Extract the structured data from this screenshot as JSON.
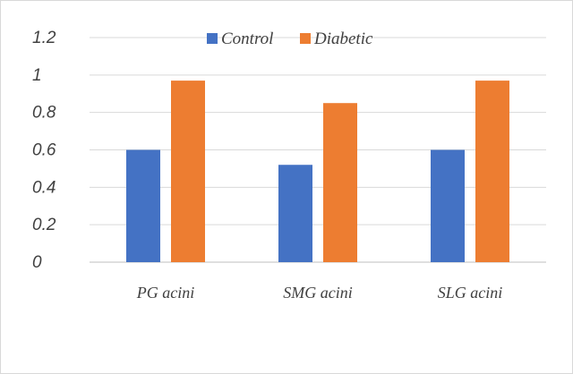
{
  "chart_data": {
    "type": "bar",
    "categories": [
      "PG acini",
      "SMG acini",
      "SLG acini"
    ],
    "series": [
      {
        "name": "Control",
        "values": [
          0.6,
          0.52,
          0.6
        ],
        "color": "#4472c4"
      },
      {
        "name": "Diabetic",
        "values": [
          0.97,
          0.85,
          0.97
        ],
        "color": "#ed7d31"
      }
    ],
    "yticks": [
      "0",
      "0.2",
      "0.4",
      "0.6",
      "0.8",
      "1",
      "1.2"
    ],
    "ylim": [
      0,
      1.2
    ],
    "grid": true,
    "legend": "top-center"
  }
}
